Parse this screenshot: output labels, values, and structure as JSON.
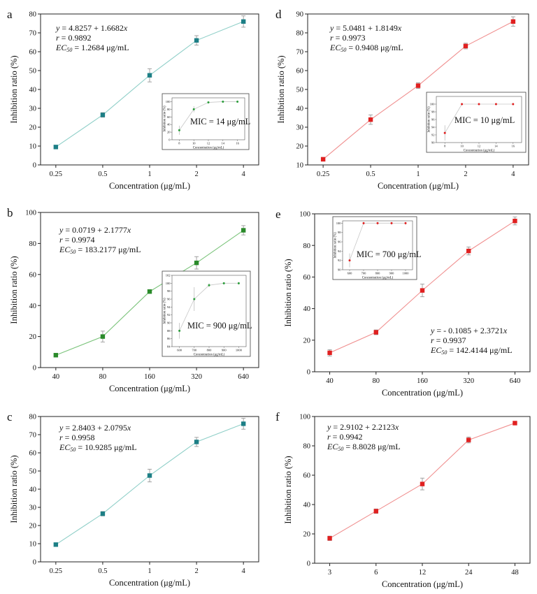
{
  "panels": [
    {
      "letter": "a",
      "equation": "y = 4.8257 + 1.6682x",
      "r": "r = 0.9892",
      "ec50": "EC50 = 1.2684 μg/mL",
      "mic": "MIC = 14 μg/mL",
      "color": "#1d7f86",
      "line_color": "#8fcfc8",
      "marker": "square",
      "chart_data": {
        "type": "line",
        "xlabel": "Concentration (μg/mL)",
        "ylabel": "Inhibition ratio (%)",
        "categories": [
          "0.25",
          "0.5",
          "1",
          "2",
          "4"
        ],
        "values": [
          9.5,
          26.5,
          47.5,
          66,
          76
        ],
        "errors": [
          0.8,
          1.2,
          3.5,
          2.5,
          3
        ],
        "ylim": [
          0,
          80
        ],
        "yticks": [
          0,
          10,
          20,
          30,
          40,
          50,
          60,
          70,
          80
        ]
      },
      "inset": {
        "xlabel": "Concentration (μg/mL)",
        "ylabel": "Inhibition ratio (%)",
        "x": [
          8,
          10,
          12,
          14,
          16
        ],
        "y": [
          25,
          80,
          98,
          100,
          100
        ],
        "errors": [
          12,
          8,
          1,
          0.5,
          0.5
        ],
        "ylim": [
          0,
          110
        ],
        "yticks": [
          0,
          20,
          40,
          60,
          80,
          100
        ],
        "xticks": [
          "8",
          "10",
          "12",
          "14",
          "16"
        ],
        "color": "#2a9d3a"
      }
    },
    {
      "letter": "b",
      "equation": "y = 0.0719 + 2.1777x",
      "r": "r = 0.9974",
      "ec50": "EC50 = 183.2177 μg/mL",
      "mic": "MIC = 900 μg/mL",
      "color": "#2a8a2a",
      "line_color": "#7cc47c",
      "marker": "square",
      "chart_data": {
        "type": "line",
        "xlabel": "Concentration (μg/mL)",
        "ylabel": "Inhibition ratio (%)",
        "categories": [
          "40",
          "80",
          "160",
          "320",
          "640"
        ],
        "values": [
          8,
          20,
          49,
          67.5,
          88.5
        ],
        "errors": [
          1,
          3.5,
          1,
          4,
          3
        ],
        "ylim": [
          0,
          100
        ],
        "yticks": [
          0,
          20,
          40,
          60,
          80,
          100
        ]
      },
      "inset": {
        "xlabel": "Concentration (μg/mL)",
        "ylabel": "Inhibition ratio (%)",
        "x": [
          600,
          700,
          800,
          900,
          1000
        ],
        "y": [
          88,
          96,
          99.5,
          100,
          100
        ],
        "errors": [
          2,
          3,
          0.5,
          0.3,
          0.3
        ],
        "ylim": [
          84,
          102
        ],
        "yticks": [
          84,
          86,
          88,
          90,
          92,
          94,
          96,
          98,
          100,
          102
        ],
        "xticks": [
          "600",
          "700",
          "800",
          "900",
          "1000"
        ],
        "color": "#2a9d3a"
      }
    },
    {
      "letter": "c",
      "equation": "y = 2.8403 + 2.0795x",
      "r": "r = 0.9958",
      "ec50": "EC50 = 10.9285 μg/mL",
      "color": "#1d7f86",
      "line_color": "#8fcfc8",
      "marker": "square",
      "chart_data": {
        "type": "line",
        "xlabel": "Concentration (μg/mL)",
        "ylabel": "Inhibition ratio (%)",
        "categories": [
          "0.25",
          "0.5",
          "1",
          "2",
          "4"
        ],
        "values": [
          9.5,
          26.5,
          47.5,
          66,
          76
        ],
        "errors": [
          0.8,
          1.2,
          3.5,
          2.5,
          3
        ],
        "ylim": [
          0,
          80
        ],
        "yticks": [
          0,
          10,
          20,
          30,
          40,
          50,
          60,
          70,
          80
        ]
      }
    },
    {
      "letter": "d",
      "equation": "y = 5.0481 + 1.8149x",
      "r": "r = 0.9973",
      "ec50": "EC50 = 0.9408 μg/mL",
      "mic": "MIC = 10 μg/mL",
      "color": "#e02020",
      "line_color": "#f09090",
      "marker": "square",
      "chart_data": {
        "type": "line",
        "xlabel": "Concentration (μg/mL)",
        "ylabel": "Inhibition ratio (%)",
        "categories": [
          "0.25",
          "0.5",
          "1",
          "2",
          "4"
        ],
        "values": [
          13,
          34,
          52,
          73,
          86
        ],
        "errors": [
          1,
          2.5,
          1.5,
          1.5,
          2.5
        ],
        "ylim": [
          10,
          90
        ],
        "yticks": [
          10,
          20,
          30,
          40,
          50,
          60,
          70,
          80,
          90
        ]
      },
      "inset": {
        "xlabel": "Concentration (μg/mL)",
        "ylabel": "Inhibition ratio (%)",
        "x": [
          8,
          10,
          12,
          14,
          16
        ],
        "y": [
          92.5,
          100,
          100,
          100,
          100
        ],
        "errors": [
          2,
          0.3,
          0.3,
          0.3,
          0.3
        ],
        "ylim": [
          90,
          102
        ],
        "yticks": [
          90,
          92,
          94,
          96,
          98,
          100
        ],
        "xticks": [
          "8",
          "10",
          "12",
          "14",
          "16"
        ],
        "color": "#e02020"
      }
    },
    {
      "letter": "e",
      "equation": "y = - 0.1085 + 2.3721x",
      "r": "r = 0.9937",
      "ec50": "EC50 = 142.4144 μg/mL",
      "mic": "MIC = 700 μg/mL",
      "color": "#e02020",
      "line_color": "#f09090",
      "marker": "square",
      "chart_data": {
        "type": "line",
        "xlabel": "Concentration (μg/mL)",
        "ylabel": "Inhibition ratio (%)",
        "categories": [
          "40",
          "80",
          "160",
          "320",
          "640"
        ],
        "values": [
          12,
          25,
          51.5,
          76.5,
          95.5
        ],
        "errors": [
          2,
          1.5,
          4,
          2.5,
          2.5
        ],
        "ylim": [
          0,
          100
        ],
        "yticks": [
          0,
          20,
          40,
          60,
          80,
          100
        ]
      },
      "inset": {
        "xlabel": "Concentration (μg/mL)",
        "ylabel": "Inhibition ratio (%)",
        "x": [
          600,
          700,
          800,
          900,
          1000
        ],
        "y": [
          92,
          100,
          100,
          100,
          100
        ],
        "errors": [
          1.5,
          0.3,
          0.3,
          0.3,
          0.3
        ],
        "ylim": [
          90,
          100.5
        ],
        "yticks": [
          90,
          92,
          94,
          96,
          98,
          100
        ],
        "xticks": [
          "600",
          "700",
          "800",
          "900",
          "1000"
        ],
        "color": "#e02020"
      }
    },
    {
      "letter": "f",
      "equation": "y = 2.9102 + 2.2123x",
      "r": "r = 0.9942",
      "ec50": "EC50 = 8.8028 μg/mL",
      "color": "#e02020",
      "line_color": "#f09090",
      "marker": "square",
      "chart_data": {
        "type": "line",
        "xlabel": "Concentration (μg/mL)",
        "ylabel": "Inhibition ratio (%)",
        "categories": [
          "3",
          "6",
          "12",
          "24",
          "48"
        ],
        "values": [
          17,
          35.5,
          54,
          84,
          95.5
        ],
        "errors": [
          1.5,
          1.5,
          4,
          2,
          1
        ],
        "ylim": [
          0,
          100
        ],
        "yticks": [
          0,
          20,
          40,
          60,
          80,
          100
        ]
      }
    }
  ]
}
